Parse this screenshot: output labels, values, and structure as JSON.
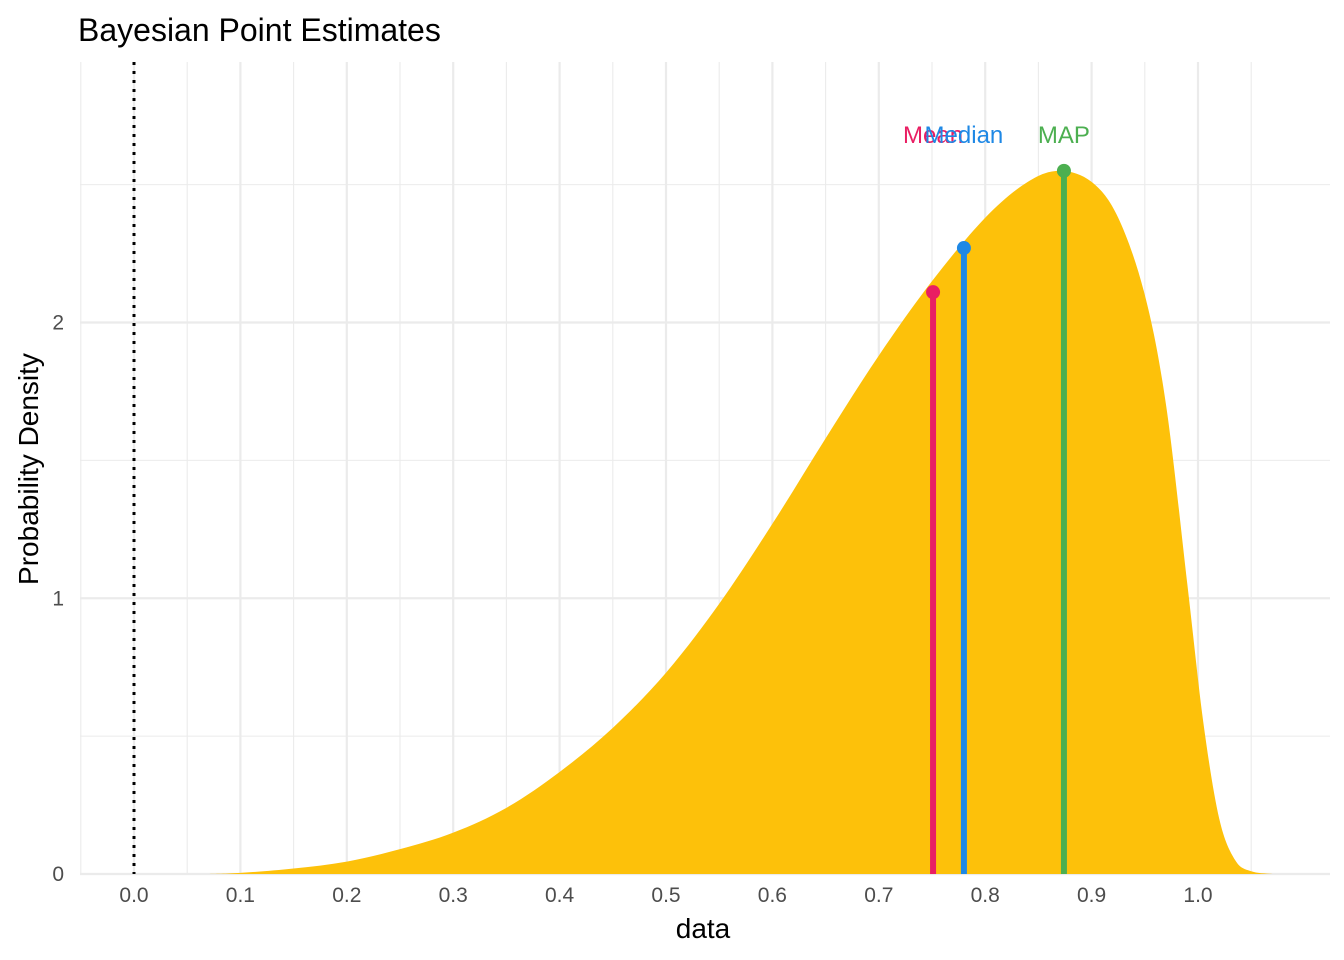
{
  "chart_data": {
    "type": "area",
    "title": "Bayesian Point Estimates",
    "xlabel": "data",
    "ylabel": "Probability Density",
    "xlim": [
      -0.05,
      1.1
    ],
    "ylim": [
      0,
      2.95
    ],
    "x_ticks": [
      "0.0",
      "0.1",
      "0.2",
      "0.3",
      "0.4",
      "0.5",
      "0.6",
      "0.7",
      "0.8",
      "0.9",
      "1.0"
    ],
    "x_tick_values": [
      0.0,
      0.1,
      0.2,
      0.3,
      0.4,
      0.5,
      0.6,
      0.7,
      0.8,
      0.9,
      1.0
    ],
    "y_ticks": [
      "0",
      "1",
      "2"
    ],
    "y_tick_values": [
      0,
      1,
      2
    ],
    "grid": true,
    "reference_line": {
      "x": 0.0,
      "style": "dotted",
      "color": "#000000"
    },
    "density": {
      "fill": "#FDC10A",
      "x": [
        0.07,
        0.1,
        0.15,
        0.2,
        0.25,
        0.3,
        0.35,
        0.4,
        0.45,
        0.5,
        0.55,
        0.6,
        0.65,
        0.7,
        0.75,
        0.8,
        0.84,
        0.87,
        0.9,
        0.925,
        0.95,
        0.97,
        0.99,
        1.005,
        1.02,
        1.035,
        1.05,
        1.07
      ],
      "y": [
        0.0,
        0.004,
        0.02,
        0.045,
        0.09,
        0.15,
        0.24,
        0.37,
        0.53,
        0.73,
        0.98,
        1.27,
        1.58,
        1.88,
        2.15,
        2.38,
        2.51,
        2.55,
        2.51,
        2.38,
        2.1,
        1.7,
        1.05,
        0.55,
        0.2,
        0.05,
        0.01,
        0.0
      ]
    },
    "estimates": [
      {
        "name": "Mean",
        "x": 0.751,
        "y": 2.11,
        "color": "#E91E63"
      },
      {
        "name": "Median",
        "x": 0.78,
        "y": 2.27,
        "color": "#1E88E5"
      },
      {
        "name": "MAP",
        "x": 0.874,
        "y": 2.55,
        "color": "#4CAF50"
      }
    ]
  }
}
